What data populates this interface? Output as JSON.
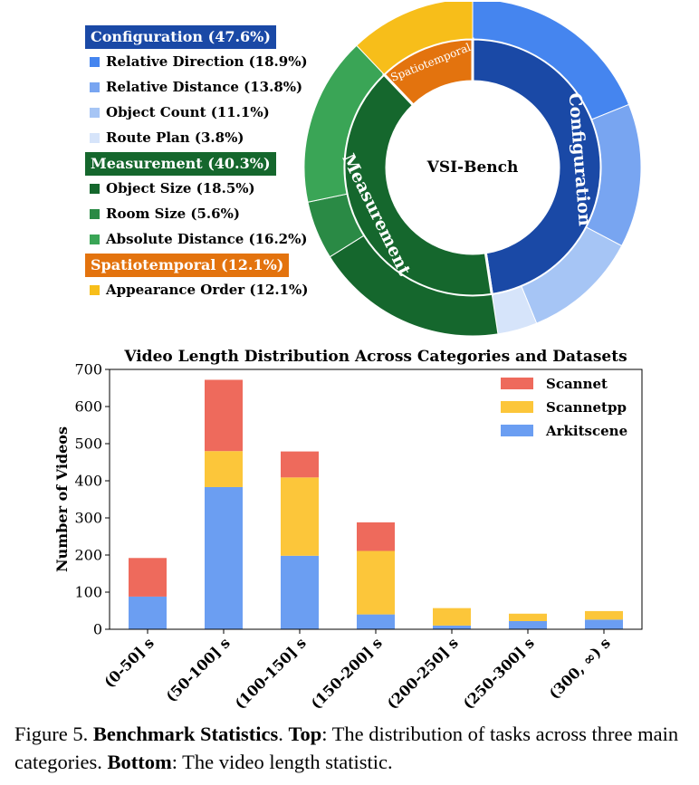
{
  "sunburst": {
    "center_label": "VSI-Bench",
    "categories": [
      {
        "name": "Configuration",
        "pct_label": "Configuration (47.6%)",
        "value": 47.6,
        "color": "#1a49a6",
        "subs": [
          {
            "name": "Relative Direction",
            "label": "Relative Direction (18.9%)",
            "value": 18.9,
            "color": "#4585ef"
          },
          {
            "name": "Relative Distance",
            "label": "Relative Distance (13.8%)",
            "value": 13.8,
            "color": "#78a5f1"
          },
          {
            "name": "Object Count",
            "label": "Object Count (11.1%)",
            "value": 11.1,
            "color": "#a6c5f5"
          },
          {
            "name": "Route Plan",
            "label": "Route Plan (3.8%)",
            "value": 3.8,
            "color": "#d6e4fa"
          }
        ]
      },
      {
        "name": "Measurement",
        "pct_label": "Measurement (40.3%)",
        "value": 40.3,
        "color": "#15672d",
        "subs": [
          {
            "name": "Object Size",
            "label": "Object Size (18.5%)",
            "value": 18.5,
            "color": "#15672d"
          },
          {
            "name": "Room Size",
            "label": "Room Size (5.6%)",
            "value": 5.6,
            "color": "#2a8a45"
          },
          {
            "name": "Absolute Distance",
            "label": "Absolute Distance (16.2%)",
            "value": 16.2,
            "color": "#3aa556"
          }
        ]
      },
      {
        "name": "Spatiotemporal",
        "pct_label": "Spatiotemporal (12.1%)",
        "value": 12.1,
        "color": "#e3730e",
        "subs": [
          {
            "name": "Appearance Order",
            "label": "Appearance Order (12.1%)",
            "value": 12.1,
            "color": "#f7be1a"
          }
        ]
      }
    ]
  },
  "chart_data": {
    "type": "bar",
    "stacked": true,
    "title": "Video Length Distribution Across Categories and Datasets",
    "xlabel": "",
    "ylabel": "Number of Videos",
    "ylim": [
      0,
      700
    ],
    "yticks": [
      0,
      100,
      200,
      300,
      400,
      500,
      600,
      700
    ],
    "categories": [
      "(0-50] s",
      "(50-100] s",
      "(100-150] s",
      "(150-200] s",
      "(200-250] s",
      "(250-300] s",
      "(300, ∞) s"
    ],
    "series": [
      {
        "name": "Arkitscene",
        "color": "#6b9ef2",
        "values": [
          88,
          383,
          198,
          40,
          10,
          22,
          26
        ]
      },
      {
        "name": "Scannetpp",
        "color": "#fcc63a",
        "values": [
          0,
          97,
          211,
          171,
          47,
          20,
          23
        ]
      },
      {
        "name": "Scannet",
        "color": "#ee6a5c",
        "values": [
          104,
          192,
          70,
          77,
          0,
          0,
          0
        ]
      }
    ],
    "legend_order": [
      "Scannet",
      "Scannetpp",
      "Arkitscene"
    ],
    "legend_position": "top-right"
  },
  "caption": {
    "prefix": "Figure 5. ",
    "title": "Benchmark Statistics",
    "after_title": ". ",
    "top_label": "Top",
    "top_text": ": The distribution of tasks across three main categories. ",
    "bottom_label": "Bottom",
    "bottom_text": ": The video length statistic."
  }
}
